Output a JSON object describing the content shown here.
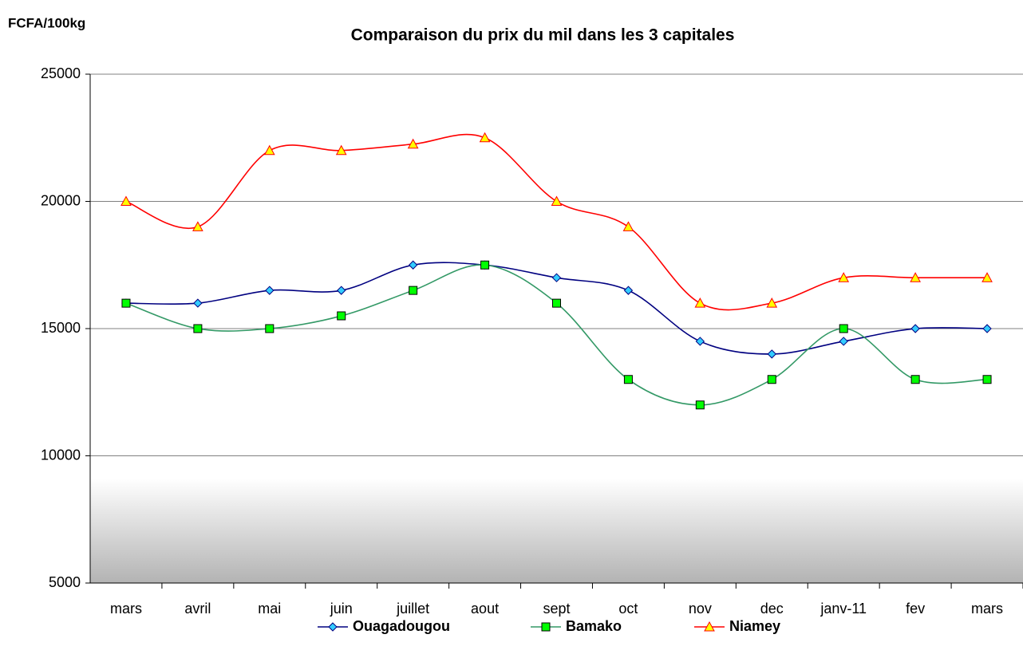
{
  "chart_data": {
    "type": "line",
    "title": "Comparaison du prix du mil dans les 3 capitales",
    "y_label": "FCFA/100kg",
    "categories": [
      "mars",
      "avril",
      "mai",
      "juin",
      "juillet",
      "aout",
      "sept",
      "oct",
      "nov",
      "dec",
      "janv-11",
      "fev",
      "mars"
    ],
    "series": [
      {
        "name": "Ouagadougou",
        "color": "#000080",
        "marker_color": "#33ccff",
        "marker": "diamond",
        "values": [
          16000,
          16000,
          16500,
          16500,
          17500,
          17500,
          17000,
          16500,
          14500,
          14000,
          14500,
          15000,
          15000
        ]
      },
      {
        "name": "Bamako",
        "color": "#339966",
        "marker_color": "#00ff00",
        "marker": "square",
        "values": [
          16000,
          15000,
          15000,
          15500,
          16500,
          17500,
          16000,
          13000,
          12000,
          13000,
          15000,
          13000,
          13000
        ]
      },
      {
        "name": "Niamey",
        "color": "#ff0000",
        "marker_color": "#ffff00",
        "marker": "triangle",
        "values": [
          20000,
          19000,
          22000,
          22000,
          22250,
          22500,
          20000,
          19000,
          16000,
          16000,
          17000,
          17000,
          17000
        ]
      }
    ],
    "ylim": [
      5000,
      25000
    ],
    "yticks": [
      5000,
      10000,
      15000,
      20000,
      25000
    ],
    "grid": true,
    "smooth": true,
    "legend": "bottom"
  }
}
